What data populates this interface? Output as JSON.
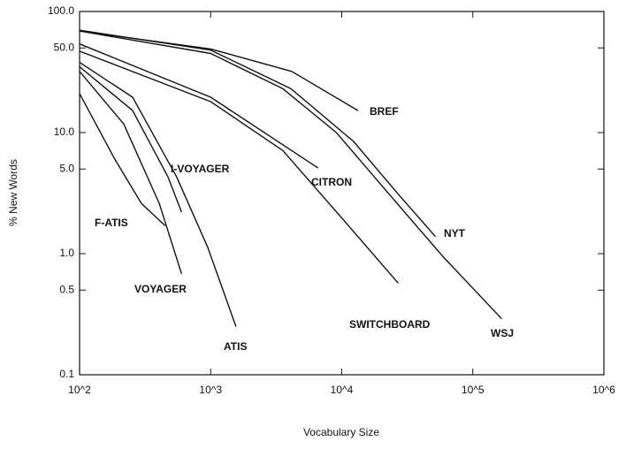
{
  "chart_data": {
    "type": "line",
    "x_label": "Vocabulary Size",
    "y_label": "% New Words",
    "xscale": "log",
    "yscale": "log",
    "xlim": [
      100,
      1000000
    ],
    "ylim": [
      0.1,
      100
    ],
    "xticks": [
      {
        "value": 100,
        "label": "10^2"
      },
      {
        "value": 1000,
        "label": "10^3"
      },
      {
        "value": 10000,
        "label": "10^4"
      },
      {
        "value": 100000,
        "label": "10^5"
      },
      {
        "value": 1000000,
        "label": "10^6"
      }
    ],
    "yticks": [
      {
        "value": 100,
        "label": "100.0"
      },
      {
        "value": 50,
        "label": "50.0"
      },
      {
        "value": 10,
        "label": "10.0"
      },
      {
        "value": 5,
        "label": "5.0"
      },
      {
        "value": 1,
        "label": "1.0"
      },
      {
        "value": 0.5,
        "label": "0.5"
      },
      {
        "value": 0.1,
        "label": "0.1"
      }
    ],
    "series": [
      {
        "name": "BREF",
        "color": "#111111",
        "x": [
          100,
          1000,
          4160,
          13300
        ],
        "values": [
          69,
          49,
          32,
          15.2
        ]
      },
      {
        "name": "NYT",
        "color": "#111111",
        "x": [
          100,
          1000,
          4100,
          12300,
          27000,
          52000
        ],
        "values": [
          70,
          48,
          23,
          8.45,
          3.1,
          1.38
        ]
      },
      {
        "name": "WSJ",
        "color": "#111111",
        "x": [
          100,
          1000,
          3560,
          9100,
          23000,
          59000,
          166000
        ],
        "values": [
          69,
          45,
          23,
          10,
          3.1,
          0.95,
          0.29
        ]
      },
      {
        "name": "CITRON",
        "color": "#111111",
        "x": [
          100,
          1000,
          6600
        ],
        "values": [
          54,
          19.6,
          5.1
        ]
      },
      {
        "name": "SWITCHBOARD",
        "color": "#111111",
        "x": [
          100,
          1000,
          3560,
          10500,
          27000
        ],
        "values": [
          47,
          18,
          7.1,
          1.86,
          0.57
        ]
      },
      {
        "name": "ATIS",
        "color": "#111111",
        "x": [
          100,
          254,
          550,
          950,
          1560
        ],
        "values": [
          38,
          19.6,
          4.3,
          1.13,
          0.25
        ]
      },
      {
        "name": "I-VOYAGER",
        "color": "#111111",
        "x": [
          100,
          254,
          473,
          600
        ],
        "values": [
          35,
          15.2,
          4.3,
          2.2
        ]
      },
      {
        "name": "VOYAGER",
        "color": "#111111",
        "x": [
          100,
          217,
          405,
          600
        ],
        "values": [
          32,
          11.8,
          2.6,
          0.68
        ]
      },
      {
        "name": "F-ATIS",
        "color": "#111111",
        "x": [
          100,
          186,
          296,
          450
        ],
        "values": [
          21,
          6,
          2.6,
          1.7
        ]
      }
    ]
  }
}
